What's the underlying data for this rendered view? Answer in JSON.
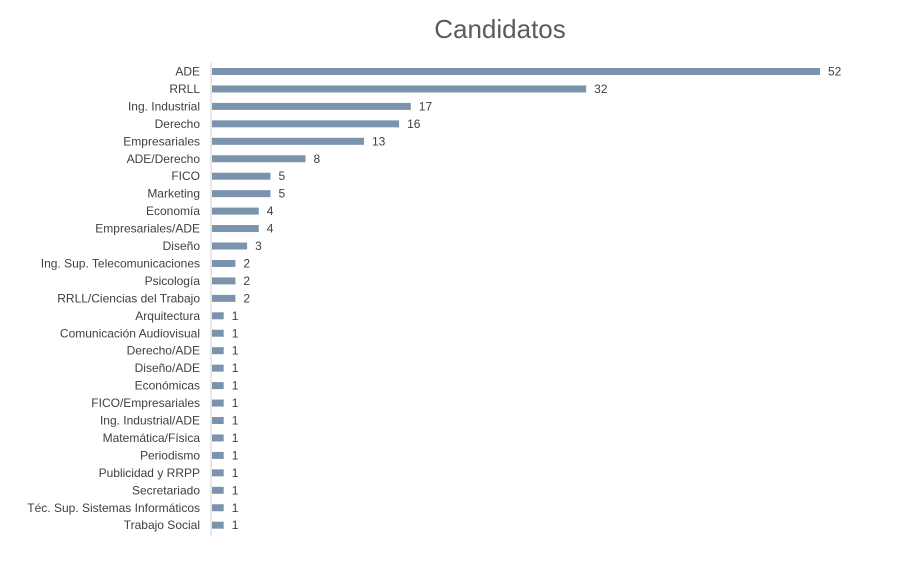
{
  "chart_data": {
    "type": "bar",
    "orientation": "horizontal",
    "title": "Candidatos",
    "xlabel": "",
    "ylabel": "",
    "bar_color": "#7b93ad",
    "axis_color": "#d0d0d0",
    "grid": false,
    "legend": "none",
    "xlim": [
      0,
      52
    ],
    "categories": [
      "ADE",
      "RRLL",
      "Ing. Industrial",
      "Derecho",
      "Empresariales",
      "ADE/Derecho",
      "FICO",
      "Marketing",
      "Economía",
      "Empresariales/ADE",
      "Diseño",
      "Ing. Sup. Telecomunicaciones",
      "Psicología",
      "RRLL/Ciencias del Trabajo",
      "Arquitectura",
      "Comunicación Audiovisual",
      "Derecho/ADE",
      "Diseño/ADE",
      "Económicas",
      "FICO/Empresariales",
      "Ing. Industrial/ADE",
      "Matemática/Física",
      "Periodismo",
      "Publicidad y RRPP",
      "Secretariado",
      "Téc. Sup. Sistemas Informáticos",
      "Trabajo Social"
    ],
    "values": [
      52,
      32,
      17,
      16,
      13,
      8,
      5,
      5,
      4,
      4,
      3,
      2,
      2,
      2,
      1,
      1,
      1,
      1,
      1,
      1,
      1,
      1,
      1,
      1,
      1,
      1,
      1
    ]
  }
}
